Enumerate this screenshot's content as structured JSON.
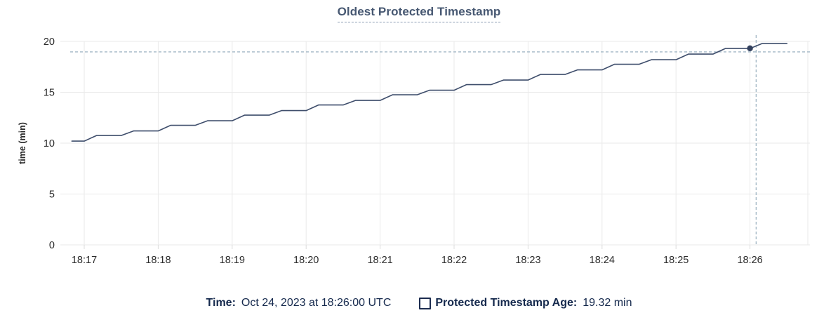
{
  "title": "Oldest Protected Timestamp",
  "tooltip": {
    "time_label": "Time:",
    "time_value": "Oct 24, 2023 at 18:26:00 UTC",
    "series_label": "Protected Timestamp Age:",
    "series_value": "19.32 min"
  },
  "colors": {
    "title": "#475872",
    "title_underline": "#8a9bb4",
    "legend_text": "#15294d",
    "line": "#3f4e6c",
    "hover_dot": "#33415e",
    "crosshair": "#a3b8c6",
    "gridline": "#eaeaea",
    "tick_stub": "#dcdcdc",
    "axis_text": "#2b2b2b",
    "background": "#ffffff"
  },
  "chart_data": {
    "type": "line",
    "title": "Oldest Protected Timestamp",
    "xlabel": "",
    "ylabel": "time (min)",
    "ylim": [
      0,
      20
    ],
    "y_ticks": [
      0,
      5,
      10,
      15,
      20
    ],
    "x_tick_labels": [
      "18:17",
      "18:18",
      "18:19",
      "18:20",
      "18:21",
      "18:22",
      "18:23",
      "18:24",
      "18:25",
      "18:26"
    ],
    "x_tick_interval_s": 60,
    "grid": true,
    "legend_position": "bottom",
    "series": [
      {
        "name": "Protected Timestamp Age",
        "unit": "min",
        "start_offset_s": -10,
        "interval_s": 10,
        "values": [
          10.2,
          10.2,
          10.75,
          10.75,
          10.75,
          11.2,
          11.2,
          11.2,
          11.75,
          11.75,
          11.75,
          12.2,
          12.2,
          12.2,
          12.75,
          12.75,
          12.75,
          13.2,
          13.2,
          13.2,
          13.75,
          13.75,
          13.75,
          14.2,
          14.2,
          14.2,
          14.75,
          14.75,
          14.75,
          15.2,
          15.2,
          15.2,
          15.75,
          15.75,
          15.75,
          16.2,
          16.2,
          16.2,
          16.75,
          16.75,
          16.75,
          17.2,
          17.2,
          17.2,
          17.75,
          17.75,
          17.75,
          18.2,
          18.2,
          18.2,
          18.75,
          18.75,
          18.75,
          19.3,
          19.3,
          19.3,
          19.8,
          19.8,
          19.8
        ]
      }
    ],
    "hover_point": {
      "time": "18:26:00",
      "offset_s": 540,
      "value": 19.32
    },
    "crosshair": {
      "offset_s": 545,
      "value": 18.97
    }
  }
}
